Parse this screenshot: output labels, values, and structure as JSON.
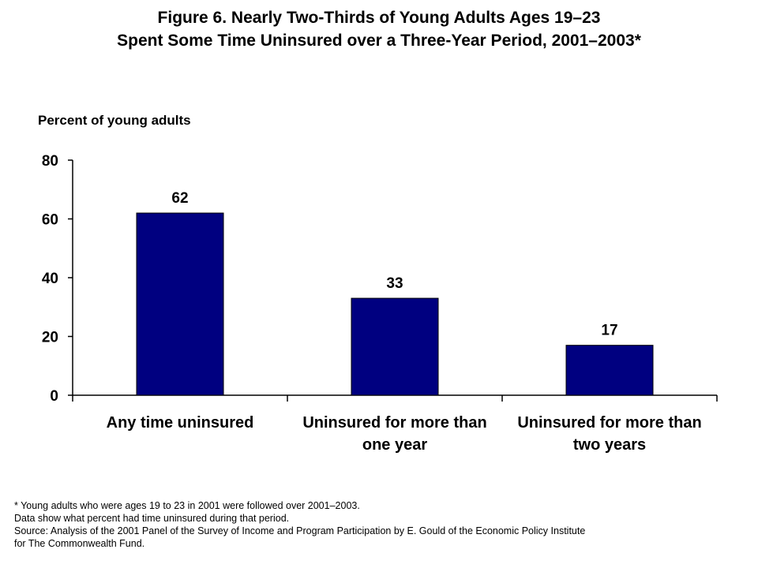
{
  "title_lines": [
    "Figure 6. Nearly Two-Thirds of Young Adults Ages 19–23",
    "Spent Some Time Uninsured over a Three-Year Period, 2001–2003*"
  ],
  "footnotes": [
    "* Young adults who were ages 19 to 23 in 2001 were followed over 2001–2003.",
    "Data show what percent had time uninsured during that period.",
    "Source: Analysis of the 2001 Panel of the Survey of Income and Program Participation by E. Gould of the Economic Policy Institute",
    "for The Commonwealth Fund."
  ],
  "colors": {
    "bar_fill": "#000080",
    "bar_stroke": "#000000",
    "axis": "#000000"
  },
  "chart_data": {
    "type": "bar",
    "title": "Figure 6. Nearly Two-Thirds of Young Adults Ages 19–23 Spent Some Time Uninsured over a Three-Year Period, 2001–2003*",
    "ylabel": "Percent of young adults",
    "xlabel": "",
    "categories": [
      [
        "Any time uninsured"
      ],
      [
        "Uninsured for more than",
        "one year"
      ],
      [
        "Uninsured for more than",
        "two years"
      ]
    ],
    "values": [
      62,
      33,
      17
    ],
    "data_labels": [
      "62",
      "33",
      "17"
    ],
    "ylim": [
      0,
      80
    ],
    "yticks": [
      0,
      20,
      40,
      60,
      80
    ],
    "grid": false,
    "legend": "none"
  }
}
